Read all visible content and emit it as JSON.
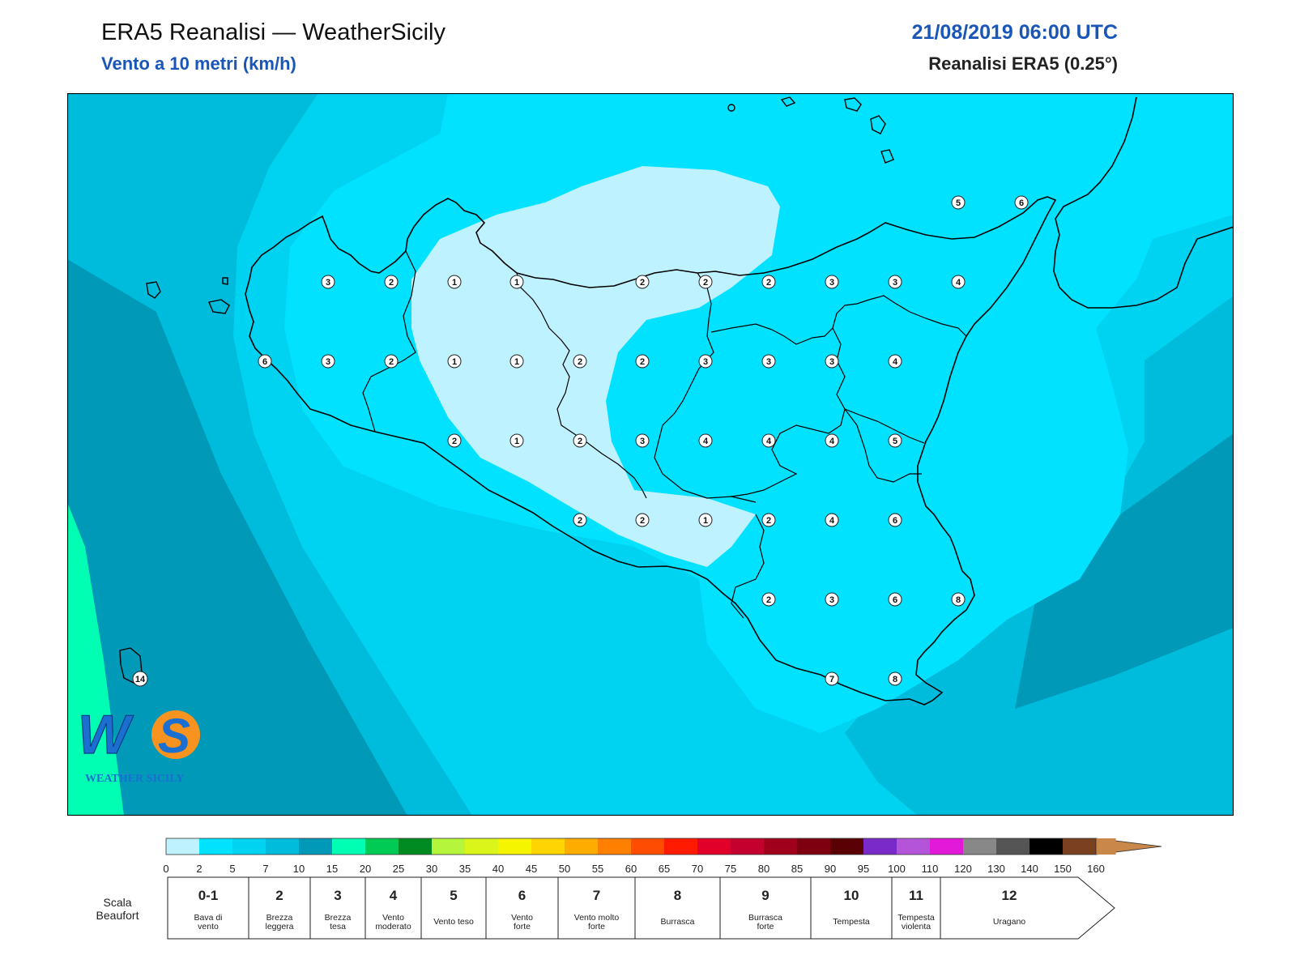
{
  "header": {
    "title": "ERA5 Reanalisi — WeatherSicily",
    "subtitle": "Vento a 10 metri (km/h)",
    "datetime": "21/08/2019 06:00 UTC",
    "model": "Reanalisi ERA5 (0.25°)"
  },
  "logo": {
    "text": "WEATHER SICILY"
  },
  "stations": [
    {
      "v": "3"
    },
    {
      "v": "2"
    },
    {
      "v": "1"
    },
    {
      "v": "1"
    },
    {
      "v": "2"
    },
    {
      "v": "2"
    },
    {
      "v": "2"
    },
    {
      "v": "3"
    },
    {
      "v": "3"
    },
    {
      "v": "4"
    },
    {
      "v": "6"
    },
    {
      "v": "3"
    },
    {
      "v": "2"
    },
    {
      "v": "1"
    },
    {
      "v": "1"
    },
    {
      "v": "2"
    },
    {
      "v": "2"
    },
    {
      "v": "3"
    },
    {
      "v": "3"
    },
    {
      "v": "3"
    },
    {
      "v": "4"
    },
    {
      "v": "2"
    },
    {
      "v": "1"
    },
    {
      "v": "2"
    },
    {
      "v": "3"
    },
    {
      "v": "4"
    },
    {
      "v": "4"
    },
    {
      "v": "4"
    },
    {
      "v": "5"
    },
    {
      "v": "2"
    },
    {
      "v": "2"
    },
    {
      "v": "1"
    },
    {
      "v": "2"
    },
    {
      "v": "4"
    },
    {
      "v": "6"
    },
    {
      "v": "2"
    },
    {
      "v": "3"
    },
    {
      "v": "6"
    },
    {
      "v": "8"
    },
    {
      "v": "7"
    },
    {
      "v": "8"
    },
    {
      "v": "5"
    },
    {
      "v": "6"
    },
    {
      "v": "14"
    }
  ],
  "colorbar": {
    "ticks": [
      "0",
      "2",
      "5",
      "7",
      "10",
      "15",
      "20",
      "25",
      "30",
      "35",
      "40",
      "45",
      "50",
      "55",
      "60",
      "65",
      "70",
      "75",
      "80",
      "85",
      "90",
      "95",
      "100",
      "110",
      "120",
      "130",
      "140",
      "150",
      "160"
    ],
    "colors": [
      "#bff2ff",
      "#00e2ff",
      "#00d2f2",
      "#00bcdc",
      "#0099b8",
      "#00ffb3",
      "#00cc55",
      "#008a22",
      "#b5f53c",
      "#d9f51a",
      "#f5f500",
      "#ffd400",
      "#ffac00",
      "#ff7f00",
      "#ff4d00",
      "#ff1a00",
      "#e0002a",
      "#c4002f",
      "#a0001c",
      "#7e0010",
      "#5a0005",
      "#7a2ac9",
      "#b455d9",
      "#e219d9",
      "#888888",
      "#555555",
      "#000000",
      "#7a4020",
      "#c9874a"
    ]
  },
  "beaufort": {
    "label": "Scala Beaufort",
    "classes": [
      {
        "n": "0-1",
        "d": "Bava di vento"
      },
      {
        "n": "2",
        "d": "Brezza leggera"
      },
      {
        "n": "3",
        "d": "Brezza tesa"
      },
      {
        "n": "4",
        "d": "Vento moderato"
      },
      {
        "n": "5",
        "d": "Vento teso"
      },
      {
        "n": "6",
        "d": "Vento forte"
      },
      {
        "n": "7",
        "d": "Vento molto forte"
      },
      {
        "n": "8",
        "d": "Burrasca"
      },
      {
        "n": "9",
        "d": "Burrasca forte"
      },
      {
        "n": "10",
        "d": "Tempesta"
      },
      {
        "n": "11",
        "d": "Tempesta violenta"
      },
      {
        "n": "12",
        "d": "Uragano"
      }
    ]
  }
}
